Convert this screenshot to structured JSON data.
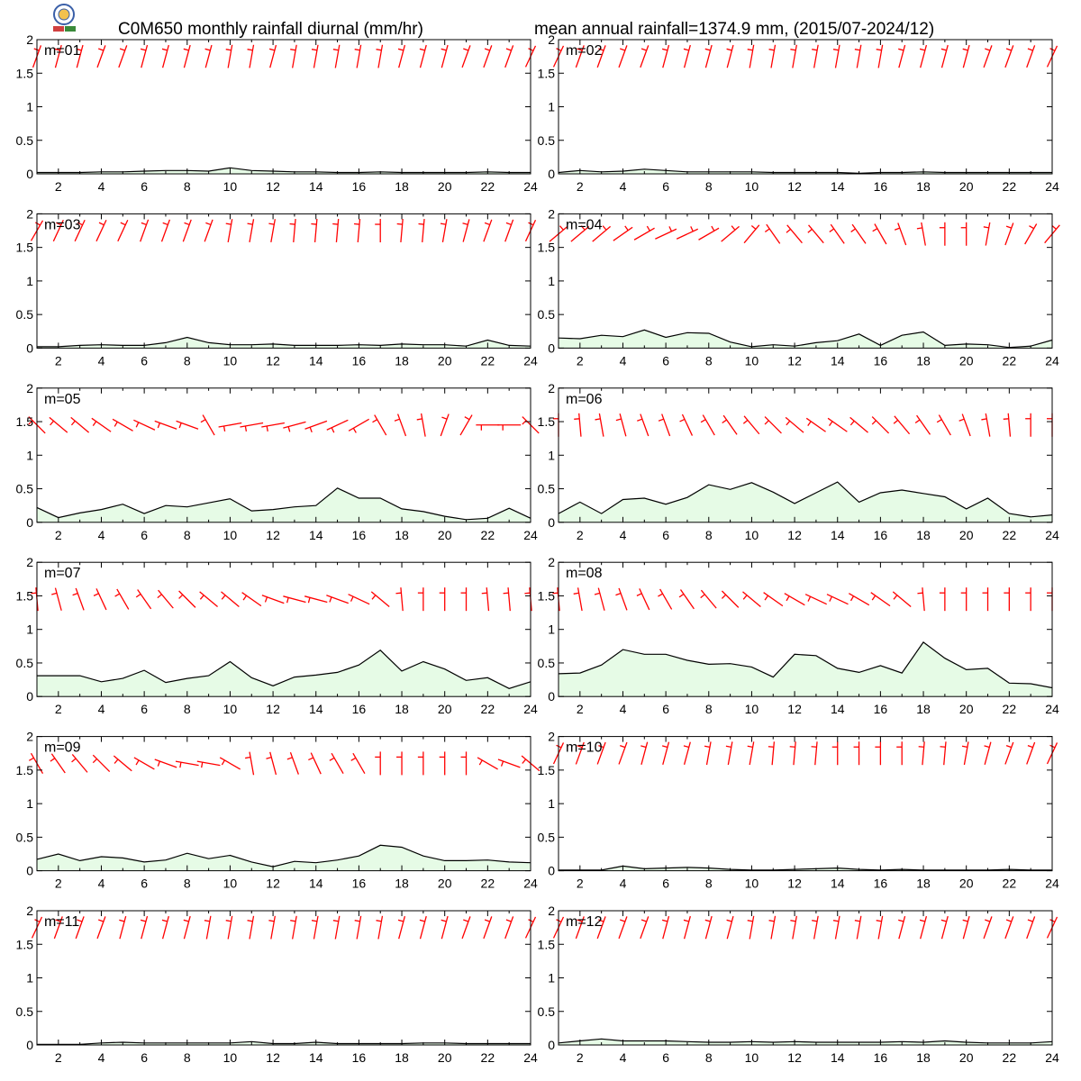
{
  "header": {
    "title_left": "C0M650 monthly rainfall diurnal (mm/hr)",
    "title_right": "mean annual rainfall=1374.9 mm, (2015/07-2024/12)"
  },
  "logo": {
    "name": "lab-logo-icon"
  },
  "colors": {
    "rain_line": "#000000",
    "rain_fill": "#e6fbe6",
    "barb": "#ff0000",
    "frame": "#000000"
  },
  "chart_data": {
    "type": "area",
    "xlabel": "",
    "ylabel": "",
    "xlim": [
      1,
      24
    ],
    "ylim": [
      0,
      2
    ],
    "x": [
      1,
      2,
      3,
      4,
      5,
      6,
      7,
      8,
      9,
      10,
      11,
      12,
      13,
      14,
      15,
      16,
      17,
      18,
      19,
      20,
      21,
      22,
      23,
      24
    ],
    "x_ticks": [
      2,
      4,
      6,
      8,
      10,
      12,
      14,
      16,
      18,
      20,
      22,
      24
    ],
    "y_ticks": [
      0,
      0.5,
      1,
      1.5,
      2
    ],
    "y_tick_labels": [
      "0",
      "0.5",
      "1",
      "1.5",
      "2"
    ],
    "wind_barb_row": {
      "1": 1.75,
      "2": 1.75,
      "3": 1.75,
      "4": 1.7,
      "5": 1.45,
      "6": 1.45,
      "7": 1.45,
      "8": 1.45,
      "9": 1.6,
      "10": 1.75,
      "11": 1.75,
      "12": 1.75
    },
    "panels": [
      {
        "label": "m=01",
        "rain": [
          0.02,
          0.02,
          0.02,
          0.03,
          0.03,
          0.04,
          0.05,
          0.05,
          0.04,
          0.09,
          0.05,
          0.04,
          0.03,
          0.03,
          0.02,
          0.02,
          0.03,
          0.02,
          0.02,
          0.02,
          0.02,
          0.03,
          0.02,
          0.02
        ],
        "wind_dir": [
          200,
          195,
          195,
          200,
          200,
          195,
          195,
          195,
          195,
          190,
          190,
          195,
          190,
          190,
          190,
          190,
          190,
          195,
          195,
          195,
          200,
          200,
          200,
          205
        ]
      },
      {
        "label": "m=02",
        "rain": [
          0.02,
          0.05,
          0.03,
          0.04,
          0.07,
          0.05,
          0.03,
          0.03,
          0.03,
          0.03,
          0.02,
          0.02,
          0.02,
          0.02,
          0.01,
          0.02,
          0.02,
          0.03,
          0.02,
          0.02,
          0.02,
          0.02,
          0.02,
          0.02
        ],
        "wind_dir": [
          205,
          200,
          200,
          200,
          200,
          195,
          195,
          195,
          195,
          190,
          190,
          190,
          190,
          190,
          190,
          190,
          195,
          195,
          195,
          195,
          200,
          200,
          200,
          205
        ]
      },
      {
        "label": "m=03",
        "rain": [
          0.02,
          0.02,
          0.04,
          0.05,
          0.04,
          0.04,
          0.08,
          0.16,
          0.08,
          0.05,
          0.05,
          0.06,
          0.04,
          0.04,
          0.04,
          0.05,
          0.04,
          0.06,
          0.05,
          0.05,
          0.03,
          0.12,
          0.04,
          0.03
        ],
        "wind_dir": [
          210,
          205,
          205,
          205,
          205,
          200,
          200,
          200,
          200,
          190,
          190,
          190,
          185,
          185,
          185,
          185,
          180,
          185,
          185,
          190,
          195,
          200,
          200,
          205
        ]
      },
      {
        "label": "m=04",
        "rain": [
          0.15,
          0.14,
          0.19,
          0.17,
          0.27,
          0.16,
          0.23,
          0.22,
          0.09,
          0.02,
          0.05,
          0.03,
          0.08,
          0.11,
          0.21,
          0.04,
          0.19,
          0.24,
          0.04,
          0.06,
          0.05,
          0.01,
          0.03,
          0.12
        ],
        "wind_dir": [
          230,
          230,
          230,
          235,
          240,
          245,
          245,
          240,
          230,
          220,
          145,
          140,
          140,
          145,
          145,
          150,
          160,
          170,
          180,
          180,
          190,
          200,
          210,
          220
        ]
      },
      {
        "label": "m=05",
        "rain": [
          0.22,
          0.07,
          0.14,
          0.19,
          0.27,
          0.13,
          0.25,
          0.23,
          0.29,
          0.35,
          0.17,
          0.19,
          0.23,
          0.25,
          0.51,
          0.36,
          0.36,
          0.2,
          0.16,
          0.09,
          0.04,
          0.06,
          0.21,
          0.06
        ],
        "wind_dir": [
          135,
          130,
          130,
          125,
          120,
          115,
          110,
          110,
          150,
          80,
          80,
          80,
          75,
          70,
          65,
          60,
          150,
          160,
          170,
          200,
          210,
          90,
          90,
          135
        ]
      },
      {
        "label": "m=06",
        "rain": [
          0.13,
          0.3,
          0.13,
          0.34,
          0.36,
          0.27,
          0.37,
          0.56,
          0.49,
          0.59,
          0.45,
          0.28,
          0.44,
          0.6,
          0.3,
          0.44,
          0.48,
          0.43,
          0.38,
          0.2,
          0.36,
          0.13,
          0.08,
          0.11
        ],
        "wind_dir": [
          180,
          175,
          170,
          165,
          160,
          160,
          155,
          150,
          145,
          140,
          135,
          130,
          125,
          125,
          130,
          135,
          140,
          145,
          150,
          160,
          170,
          175,
          180,
          180
        ]
      },
      {
        "label": "m=07",
        "rain": [
          0.31,
          0.31,
          0.31,
          0.22,
          0.27,
          0.39,
          0.21,
          0.27,
          0.31,
          0.52,
          0.28,
          0.16,
          0.29,
          0.32,
          0.36,
          0.47,
          0.69,
          0.38,
          0.52,
          0.41,
          0.24,
          0.28,
          0.12,
          0.22
        ],
        "wind_dir": [
          175,
          165,
          160,
          155,
          150,
          145,
          140,
          135,
          130,
          130,
          125,
          110,
          105,
          105,
          110,
          115,
          130,
          175,
          180,
          180,
          180,
          175,
          175,
          175
        ]
      },
      {
        "label": "m=08",
        "rain": [
          0.34,
          0.35,
          0.47,
          0.7,
          0.63,
          0.63,
          0.54,
          0.48,
          0.49,
          0.44,
          0.29,
          0.63,
          0.61,
          0.42,
          0.36,
          0.46,
          0.35,
          0.81,
          0.57,
          0.4,
          0.42,
          0.2,
          0.19,
          0.13
        ],
        "wind_dir": [
          175,
          170,
          165,
          160,
          155,
          150,
          145,
          140,
          135,
          130,
          125,
          120,
          115,
          115,
          120,
          125,
          130,
          175,
          180,
          180,
          180,
          180,
          180,
          180
        ]
      },
      {
        "label": "m=09",
        "rain": [
          0.17,
          0.25,
          0.15,
          0.21,
          0.19,
          0.13,
          0.16,
          0.26,
          0.18,
          0.23,
          0.13,
          0.06,
          0.14,
          0.12,
          0.16,
          0.22,
          0.38,
          0.35,
          0.22,
          0.15,
          0.15,
          0.16,
          0.13,
          0.12
        ],
        "wind_dir": [
          150,
          145,
          140,
          135,
          130,
          120,
          110,
          100,
          100,
          120,
          170,
          165,
          160,
          155,
          150,
          150,
          180,
          180,
          180,
          180,
          180,
          120,
          110,
          130
        ]
      },
      {
        "label": "m=10",
        "rain": [
          0.01,
          0.01,
          0.01,
          0.07,
          0.03,
          0.04,
          0.05,
          0.04,
          0.02,
          0.01,
          0.01,
          0.02,
          0.03,
          0.04,
          0.02,
          0.01,
          0.02,
          0.01,
          0.01,
          0.01,
          0.01,
          0.02,
          0.01,
          0.01
        ],
        "wind_dir": [
          205,
          200,
          200,
          200,
          195,
          195,
          195,
          190,
          190,
          190,
          185,
          185,
          185,
          180,
          180,
          180,
          180,
          185,
          185,
          190,
          195,
          200,
          200,
          205
        ]
      },
      {
        "label": "m=11",
        "rain": [
          0.01,
          0.01,
          0.01,
          0.03,
          0.04,
          0.03,
          0.03,
          0.03,
          0.03,
          0.03,
          0.05,
          0.02,
          0.02,
          0.04,
          0.02,
          0.02,
          0.02,
          0.02,
          0.03,
          0.03,
          0.02,
          0.02,
          0.02,
          0.02
        ],
        "wind_dir": [
          205,
          200,
          200,
          200,
          195,
          195,
          195,
          195,
          190,
          190,
          190,
          190,
          190,
          190,
          190,
          190,
          190,
          195,
          195,
          195,
          200,
          200,
          200,
          205
        ]
      },
      {
        "label": "m=12",
        "rain": [
          0.03,
          0.06,
          0.09,
          0.06,
          0.06,
          0.06,
          0.05,
          0.04,
          0.04,
          0.05,
          0.04,
          0.05,
          0.04,
          0.04,
          0.04,
          0.04,
          0.05,
          0.04,
          0.06,
          0.04,
          0.03,
          0.03,
          0.03,
          0.05
        ],
        "wind_dir": [
          205,
          200,
          200,
          200,
          200,
          195,
          195,
          195,
          195,
          190,
          190,
          190,
          190,
          190,
          190,
          190,
          195,
          195,
          195,
          195,
          200,
          200,
          200,
          205
        ]
      }
    ]
  }
}
